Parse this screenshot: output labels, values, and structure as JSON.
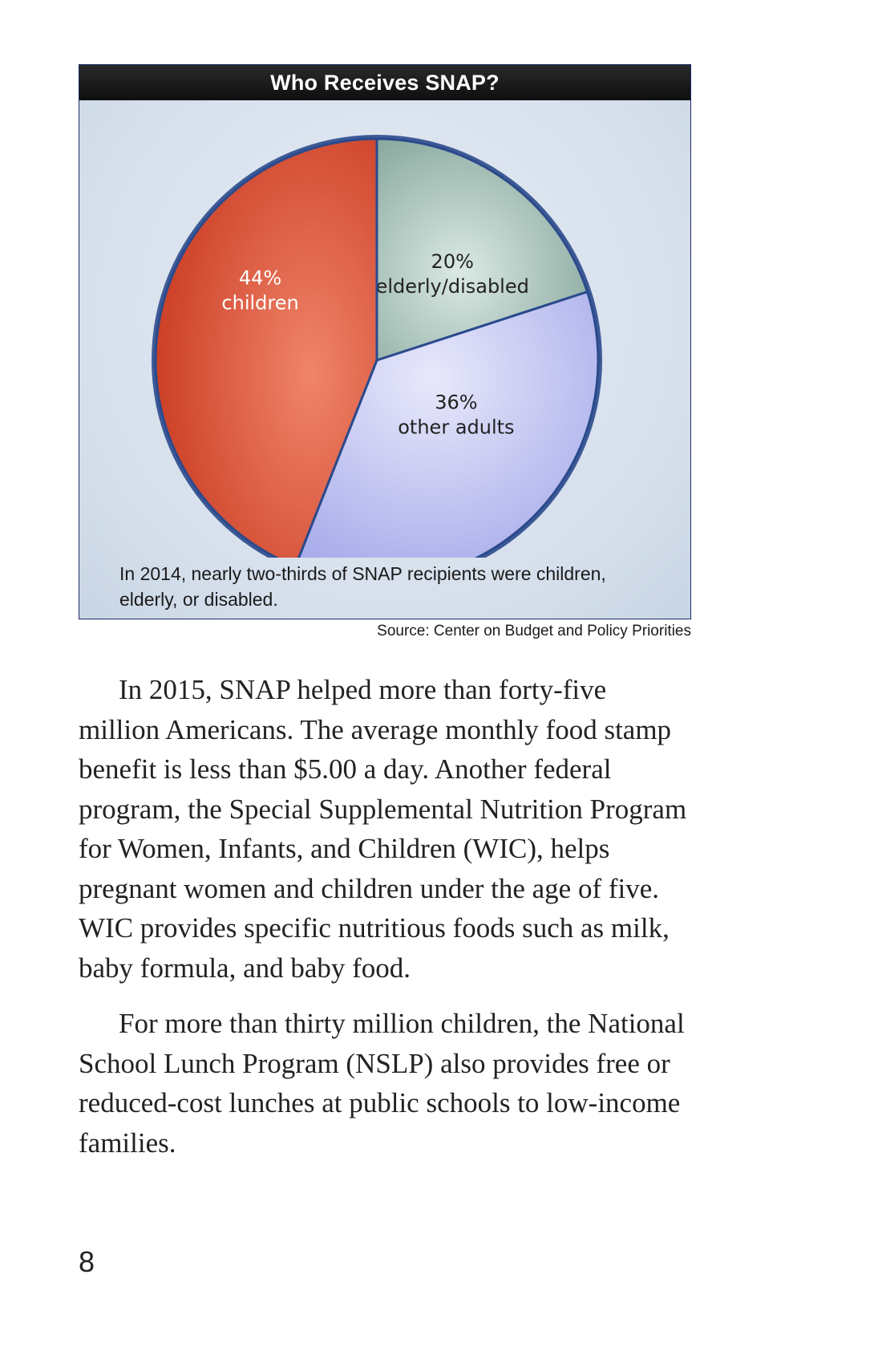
{
  "figure": {
    "title": "Who Receives SNAP?",
    "caption": "In 2014, nearly two-thirds of SNAP recipients were children, elderly, or disabled.",
    "source": "Source: Center on Budget and Policy Priorities"
  },
  "chart_data": {
    "type": "pie",
    "title": "Who Receives SNAP?",
    "slices": [
      {
        "pct_label": "20%",
        "label": "elderly/disabled",
        "value": 20,
        "color": "#9fbcb3"
      },
      {
        "pct_label": "36%",
        "label": "other adults",
        "value": 36,
        "color": "#b8bcf0"
      },
      {
        "pct_label": "44%",
        "label": "children",
        "value": 44,
        "color": "#d9553a"
      }
    ]
  },
  "body": {
    "paragraph1": "In 2015, SNAP helped more than forty-five million Americans. The average monthly food stamp benefit is less than $5.00 a day. Another federal program, the Special Supplemental Nutrition Program for Women, Infants, and Children (WIC), helps pregnant women and children under the age of five. WIC provides specific nutritious foods such as milk, baby formula, and baby food.",
    "paragraph2": "For more than thirty million children, the National School Lunch Program (NSLP) also provides free or reduced-cost lunches at public schools to low-income families."
  },
  "page_number": "8"
}
